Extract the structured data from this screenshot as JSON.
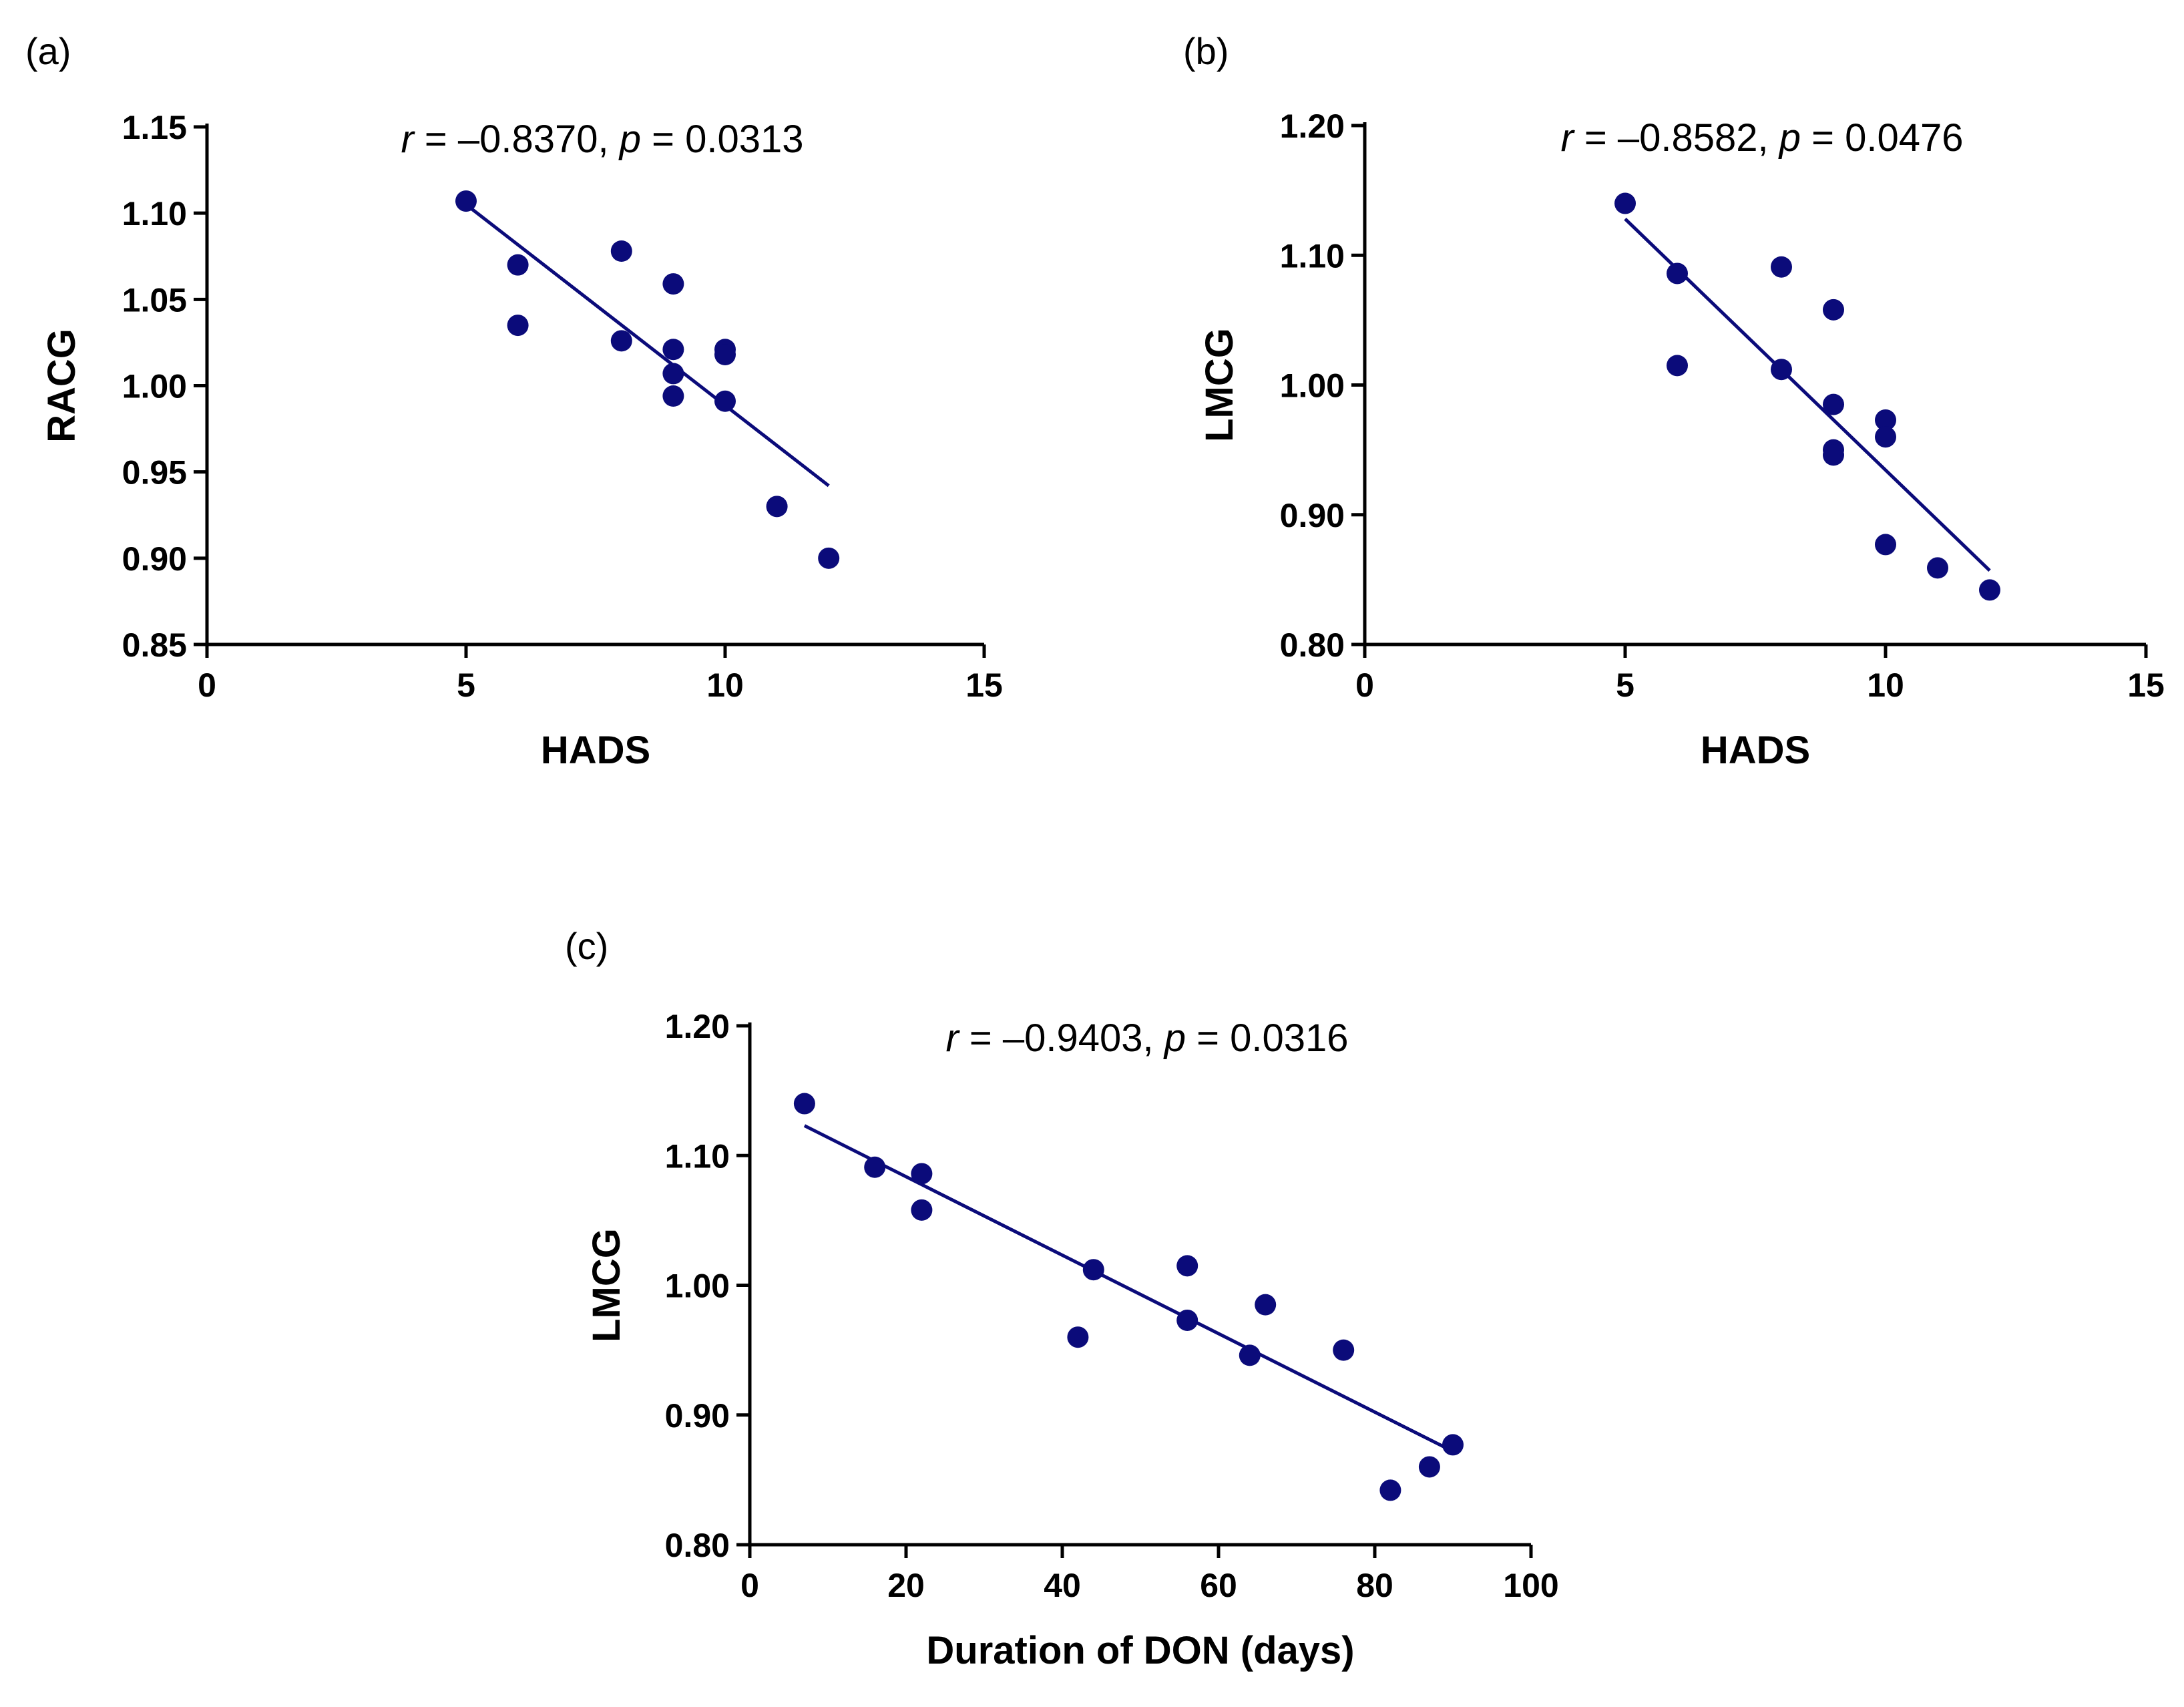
{
  "chart_data": [
    {
      "type": "scatter",
      "panel_label": "(a)",
      "title": "",
      "xlabel": "HADS",
      "ylabel": "RACG",
      "xlim": [
        0,
        15
      ],
      "ylim": [
        0.85,
        1.15
      ],
      "xticks": [
        "0",
        "5",
        "10",
        "15"
      ],
      "yticks": [
        "0.85",
        "0.90",
        "0.95",
        "1.00",
        "1.05",
        "1.10",
        "1.15"
      ],
      "annotation": {
        "r_symbol": "r",
        "r_text": " = –0.8370, ",
        "p_symbol": "p",
        "p_text": " = 0.0313"
      },
      "grid": false,
      "color": "#0b0b7a",
      "points": [
        {
          "x": 5,
          "y": 1.107
        },
        {
          "x": 6,
          "y": 1.07
        },
        {
          "x": 6,
          "y": 1.035
        },
        {
          "x": 8,
          "y": 1.078
        },
        {
          "x": 8,
          "y": 1.026
        },
        {
          "x": 9,
          "y": 1.059
        },
        {
          "x": 9,
          "y": 1.021
        },
        {
          "x": 9,
          "y": 1.007
        },
        {
          "x": 9,
          "y": 0.994
        },
        {
          "x": 10,
          "y": 1.021
        },
        {
          "x": 10,
          "y": 1.018
        },
        {
          "x": 10,
          "y": 0.991
        },
        {
          "x": 11,
          "y": 0.93
        },
        {
          "x": 12,
          "y": 0.9
        }
      ],
      "fit_line": [
        {
          "x": 5,
          "y": 1.105
        },
        {
          "x": 12,
          "y": 0.942
        }
      ]
    },
    {
      "type": "scatter",
      "panel_label": "(b)",
      "title": "",
      "xlabel": "HADS",
      "ylabel": "LMCG",
      "xlim": [
        0,
        15
      ],
      "ylim": [
        0.8,
        1.2
      ],
      "xticks": [
        "0",
        "5",
        "10",
        "15"
      ],
      "yticks": [
        "0.80",
        "0.90",
        "1.00",
        "1.10",
        "1.20"
      ],
      "annotation": {
        "r_symbol": "r",
        "r_text": " = –0.8582, ",
        "p_symbol": "p",
        "p_text": " = 0.0476"
      },
      "grid": false,
      "color": "#0b0b7a",
      "points": [
        {
          "x": 5,
          "y": 1.14
        },
        {
          "x": 6,
          "y": 1.086
        },
        {
          "x": 6,
          "y": 1.015
        },
        {
          "x": 8,
          "y": 1.091
        },
        {
          "x": 8,
          "y": 1.012
        },
        {
          "x": 9,
          "y": 1.058
        },
        {
          "x": 9,
          "y": 0.985
        },
        {
          "x": 9,
          "y": 0.95
        },
        {
          "x": 9,
          "y": 0.946
        },
        {
          "x": 10,
          "y": 0.973
        },
        {
          "x": 10,
          "y": 0.96
        },
        {
          "x": 10,
          "y": 0.877
        },
        {
          "x": 11,
          "y": 0.859
        },
        {
          "x": 12,
          "y": 0.842
        }
      ],
      "fit_line": [
        {
          "x": 5,
          "y": 1.128
        },
        {
          "x": 12,
          "y": 0.857
        }
      ]
    },
    {
      "type": "scatter",
      "panel_label": "(c)",
      "title": "",
      "xlabel": "Duration of DON (days)",
      "ylabel": "LMCG",
      "xlim": [
        0,
        100
      ],
      "ylim": [
        0.8,
        1.2
      ],
      "xticks": [
        "0",
        "20",
        "40",
        "60",
        "80",
        "100"
      ],
      "yticks": [
        "0.80",
        "0.90",
        "1.00",
        "1.10",
        "1.20"
      ],
      "annotation": {
        "r_symbol": "r",
        "r_text": " = –0.9403, ",
        "p_symbol": "p",
        "p_text": " = 0.0316"
      },
      "grid": false,
      "color": "#0b0b7a",
      "points": [
        {
          "x": 7,
          "y": 1.14
        },
        {
          "x": 16,
          "y": 1.091
        },
        {
          "x": 22,
          "y": 1.086
        },
        {
          "x": 22,
          "y": 1.058
        },
        {
          "x": 42,
          "y": 0.96
        },
        {
          "x": 44,
          "y": 1.012
        },
        {
          "x": 56,
          "y": 1.015
        },
        {
          "x": 56,
          "y": 0.973
        },
        {
          "x": 64,
          "y": 0.946
        },
        {
          "x": 66,
          "y": 0.985
        },
        {
          "x": 76,
          "y": 0.95
        },
        {
          "x": 82,
          "y": 0.842
        },
        {
          "x": 87,
          "y": 0.86
        },
        {
          "x": 90,
          "y": 0.877
        }
      ],
      "fit_line": [
        {
          "x": 7,
          "y": 1.123
        },
        {
          "x": 90,
          "y": 0.872
        }
      ]
    }
  ]
}
